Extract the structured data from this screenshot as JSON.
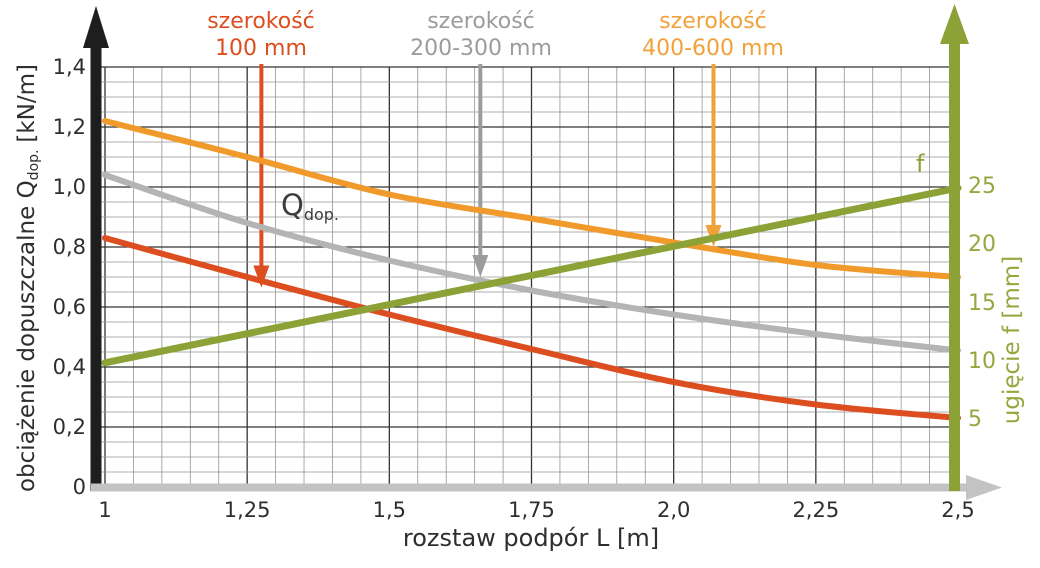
{
  "chart_data": {
    "type": "line",
    "xlabel": "rozstaw podpór L [m]",
    "x_range": [
      1,
      2.5
    ],
    "x_ticks": [
      "1",
      "1,25",
      "1,5",
      "1,75",
      "2,0",
      "2,25",
      "2,5"
    ],
    "x_tick_values": [
      1,
      1.25,
      1.5,
      1.75,
      2.0,
      2.25,
      2.5
    ],
    "grid": {
      "minor_step": 0.05,
      "major_step_x": 0.25,
      "major_step_y": 0.2,
      "on": true
    },
    "x_axis_color": "#c3c3c3",
    "y_left": {
      "title_main": "obciążenie dopuszczalne Q",
      "title_sub": "dop.",
      "title_unit": "[kN/m]",
      "range": [
        0,
        1.4
      ],
      "tick_labels": [
        "0",
        "0,2",
        "0,4",
        "0,6",
        "0,8",
        "1,0",
        "1,2",
        "1,4"
      ],
      "tick_values": [
        0,
        0.2,
        0.4,
        0.6,
        0.8,
        1.0,
        1.2,
        1.4
      ],
      "axis_color": "#1e1e1e"
    },
    "y_right": {
      "title": "ugięcie f [mm]",
      "tick_labels": [
        "5",
        "10",
        "15",
        "20",
        "25"
      ],
      "tick_values": [
        5,
        10,
        15,
        20,
        25
      ],
      "axis_color": "#8ca136",
      "text_color": "#97a63e"
    },
    "x": [
      1,
      1.25,
      1.5,
      1.75,
      2.0,
      2.25,
      2.5
    ],
    "series": [
      {
        "name": "szerokość 100 mm",
        "axis": "left",
        "color": "#dc4e20",
        "values": [
          0.83,
          0.7,
          0.575,
          0.46,
          0.35,
          0.275,
          0.23
        ]
      },
      {
        "name": "szerokość 200-300 mm",
        "axis": "left",
        "color": "#b4b4b4",
        "values": [
          1.04,
          0.88,
          0.755,
          0.655,
          0.575,
          0.51,
          0.455
        ]
      },
      {
        "name": "szerokość 400-600 mm",
        "axis": "left",
        "color": "#f19a2c",
        "values": [
          1.22,
          1.1,
          0.975,
          0.895,
          0.815,
          0.74,
          0.7
        ]
      },
      {
        "name": "f",
        "axis": "right",
        "color": "#8ca136",
        "values": [
          10,
          12.5,
          15,
          17.5,
          20,
          22.5,
          25
        ]
      }
    ],
    "annotations": [
      {
        "line1": "szerokość",
        "line2": "100 mm",
        "color": "#dc4e20",
        "x": 1.275,
        "points_to_q": 0.665
      },
      {
        "line1": "szerokość",
        "line2": "200-300 mm",
        "color": "#9c9c9c",
        "x": 1.66,
        "points_to_q": 0.7
      },
      {
        "line1": "szerokość",
        "line2": "400-600 mm",
        "color": "#f0a13a",
        "x": 2.07,
        "points_to_q": 0.8
      }
    ],
    "in_plot_labels": {
      "q_symbol": "Q",
      "q_symbol_sub": "dop.",
      "q_color": "#3c3c3c",
      "f_symbol": "f",
      "f_color": "#8ca136"
    }
  }
}
